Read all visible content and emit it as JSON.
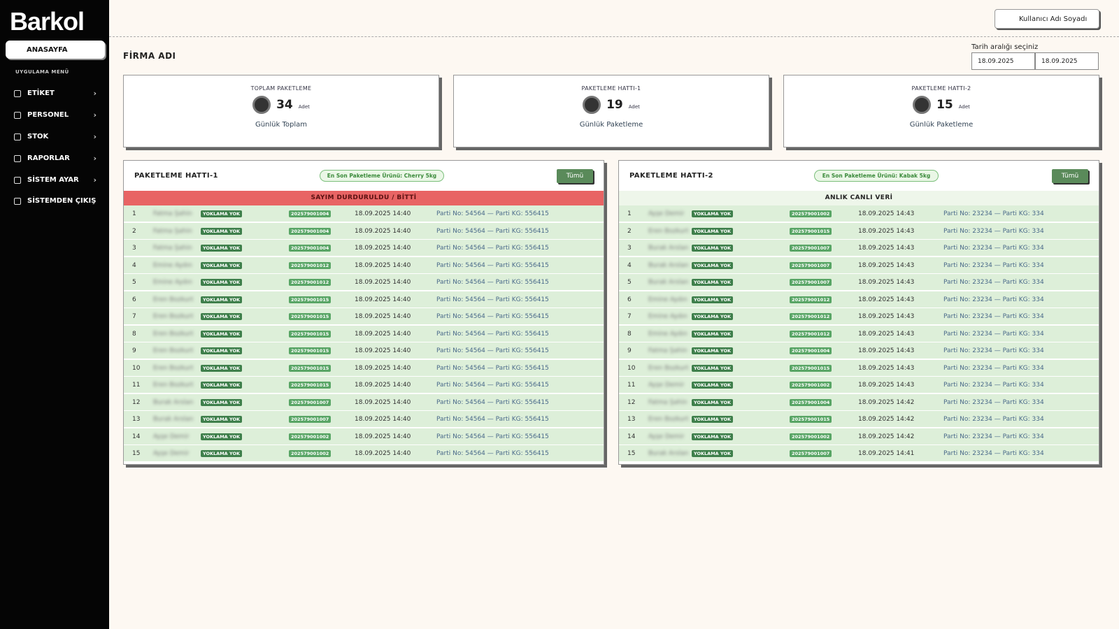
{
  "sidebar": {
    "logo": "Barkol",
    "home": "ANASAYFA",
    "menu_title": "UYGULAMA MENÜ",
    "items": [
      "ETİKET",
      "PERSONEL",
      "STOK",
      "RAPORLAR",
      "SİSTEM AYAR",
      "SİSTEMDEN ÇIKIŞ"
    ]
  },
  "header": {
    "user": "Kullanıcı Adı Soyadı",
    "company": "FİRMA ADI",
    "date_label": "Tarih aralığı seçiniz",
    "date_from": "18.09.2025",
    "date_to": "18.09.2025"
  },
  "cards": [
    {
      "title": "TOPLAM PAKETLEME",
      "value": "34",
      "unit": "Adet",
      "subtitle": "Günlük Toplam"
    },
    {
      "title": "PAKETLEME HATTI-1",
      "value": "19",
      "unit": "Adet",
      "subtitle": "Günlük Paketleme"
    },
    {
      "title": "PAKETLEME HATTI-2",
      "value": "15",
      "unit": "Adet",
      "subtitle": "Günlük Paketleme"
    }
  ],
  "panels": [
    {
      "title": "PAKETLEME HATTI-1",
      "badge": "En Son Paketleme Ürünü: Cherry 5kg",
      "button": "Tümü",
      "banner": "SAYIM DURDURULDU / BİTTİ",
      "rows": [
        [
          "1",
          "Fatma Şahin",
          "YOKLAMA YOK",
          "202579001004",
          "18.09.2025 14:40",
          "Parti No: 54564 — Parti KG: 556415"
        ],
        [
          "2",
          "Fatma Şahin",
          "YOKLAMA YOK",
          "202579001004",
          "18.09.2025 14:40",
          "Parti No: 54564 — Parti KG: 556415"
        ],
        [
          "3",
          "Fatma Şahin",
          "YOKLAMA YOK",
          "202579001004",
          "18.09.2025 14:40",
          "Parti No: 54564 — Parti KG: 556415"
        ],
        [
          "4",
          "Emine Aydın",
          "YOKLAMA YOK",
          "202579001012",
          "18.09.2025 14:40",
          "Parti No: 54564 — Parti KG: 556415"
        ],
        [
          "5",
          "Emine Aydın",
          "YOKLAMA YOK",
          "202579001012",
          "18.09.2025 14:40",
          "Parti No: 54564 — Parti KG: 556415"
        ],
        [
          "6",
          "Eren Bozkurt",
          "YOKLAMA YOK",
          "202579001015",
          "18.09.2025 14:40",
          "Parti No: 54564 — Parti KG: 556415"
        ],
        [
          "7",
          "Eren Bozkurt",
          "YOKLAMA YOK",
          "202579001015",
          "18.09.2025 14:40",
          "Parti No: 54564 — Parti KG: 556415"
        ],
        [
          "8",
          "Eren Bozkurt",
          "YOKLAMA YOK",
          "202579001015",
          "18.09.2025 14:40",
          "Parti No: 54564 — Parti KG: 556415"
        ],
        [
          "9",
          "Eren Bozkurt",
          "YOKLAMA YOK",
          "202579001015",
          "18.09.2025 14:40",
          "Parti No: 54564 — Parti KG: 556415"
        ],
        [
          "10",
          "Eren Bozkurt",
          "YOKLAMA YOK",
          "202579001015",
          "18.09.2025 14:40",
          "Parti No: 54564 — Parti KG: 556415"
        ],
        [
          "11",
          "Eren Bozkurt",
          "YOKLAMA YOK",
          "202579001015",
          "18.09.2025 14:40",
          "Parti No: 54564 — Parti KG: 556415"
        ],
        [
          "12",
          "Burak Arslan",
          "YOKLAMA YOK",
          "202579001007",
          "18.09.2025 14:40",
          "Parti No: 54564 — Parti KG: 556415"
        ],
        [
          "13",
          "Burak Arslan",
          "YOKLAMA YOK",
          "202579001007",
          "18.09.2025 14:40",
          "Parti No: 54564 — Parti KG: 556415"
        ],
        [
          "14",
          "Ayşe Demir",
          "YOKLAMA YOK",
          "202579001002",
          "18.09.2025 14:40",
          "Parti No: 54564 — Parti KG: 556415"
        ],
        [
          "15",
          "Ayşe Demir",
          "YOKLAMA YOK",
          "202579001002",
          "18.09.2025 14:40",
          "Parti No: 54564 — Parti KG: 556415"
        ]
      ]
    },
    {
      "title": "PAKETLEME HATTI-2",
      "badge": "En Son Paketleme Ürünü: Kabak 5kg",
      "button": "Tümü",
      "banner": "ANLIK CANLI VERİ",
      "rows": [
        [
          "1",
          "Ayşe Demir",
          "YOKLAMA YOK",
          "202579001002",
          "18.09.2025 14:43",
          "Parti No: 23234 — Parti KG: 334"
        ],
        [
          "2",
          "Eren Bozkurt",
          "YOKLAMA YOK",
          "202579001015",
          "18.09.2025 14:43",
          "Parti No: 23234 — Parti KG: 334"
        ],
        [
          "3",
          "Burak Arslan",
          "YOKLAMA YOK",
          "202579001007",
          "18.09.2025 14:43",
          "Parti No: 23234 — Parti KG: 334"
        ],
        [
          "4",
          "Burak Arslan",
          "YOKLAMA YOK",
          "202579001007",
          "18.09.2025 14:43",
          "Parti No: 23234 — Parti KG: 334"
        ],
        [
          "5",
          "Burak Arslan",
          "YOKLAMA YOK",
          "202579001007",
          "18.09.2025 14:43",
          "Parti No: 23234 — Parti KG: 334"
        ],
        [
          "6",
          "Emine Aydın",
          "YOKLAMA YOK",
          "202579001012",
          "18.09.2025 14:43",
          "Parti No: 23234 — Parti KG: 334"
        ],
        [
          "7",
          "Emine Aydın",
          "YOKLAMA YOK",
          "202579001012",
          "18.09.2025 14:43",
          "Parti No: 23234 — Parti KG: 334"
        ],
        [
          "8",
          "Emine Aydın",
          "YOKLAMA YOK",
          "202579001012",
          "18.09.2025 14:43",
          "Parti No: 23234 — Parti KG: 334"
        ],
        [
          "9",
          "Fatma Şahin",
          "YOKLAMA YOK",
          "202579001004",
          "18.09.2025 14:43",
          "Parti No: 23234 — Parti KG: 334"
        ],
        [
          "10",
          "Eren Bozkurt",
          "YOKLAMA YOK",
          "202579001015",
          "18.09.2025 14:43",
          "Parti No: 23234 — Parti KG: 334"
        ],
        [
          "11",
          "Ayşe Demir",
          "YOKLAMA YOK",
          "202579001002",
          "18.09.2025 14:43",
          "Parti No: 23234 — Parti KG: 334"
        ],
        [
          "12",
          "Fatma Şahin",
          "YOKLAMA YOK",
          "202579001004",
          "18.09.2025 14:42",
          "Parti No: 23234 — Parti KG: 334"
        ],
        [
          "13",
          "Eren Bozkurt",
          "YOKLAMA YOK",
          "202579001015",
          "18.09.2025 14:42",
          "Parti No: 23234 — Parti KG: 334"
        ],
        [
          "14",
          "Ayşe Demir",
          "YOKLAMA YOK",
          "202579001002",
          "18.09.2025 14:42",
          "Parti No: 23234 — Parti KG: 334"
        ],
        [
          "15",
          "Burak Arslan",
          "YOKLAMA YOK",
          "202579001007",
          "18.09.2025 14:41",
          "Parti No: 23234 — Parti KG: 334"
        ]
      ]
    }
  ]
}
